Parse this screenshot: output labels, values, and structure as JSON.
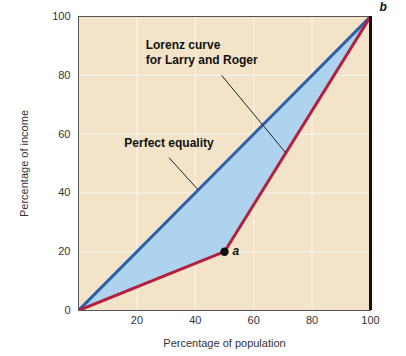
{
  "chart_data": {
    "type": "line",
    "x_label": "Percentage of population",
    "y_label": "Percentage of income",
    "x": [
      0,
      50,
      100
    ],
    "series": [
      {
        "name": "Perfect equality",
        "color": "#2e5fa8",
        "values": [
          0,
          50,
          100
        ]
      },
      {
        "name": "Lorenz curve\nfor Larry and Roger",
        "color": "#b3203f",
        "values": [
          0,
          20,
          100
        ]
      }
    ],
    "annotations": [
      {
        "text": "a",
        "x": 50,
        "y": 20,
        "marker": "dot"
      },
      {
        "text": "b",
        "x": 100,
        "y": 100
      }
    ],
    "xlim": [
      0,
      100
    ],
    "ylim": [
      0,
      100
    ],
    "xticks": [
      20,
      40,
      60,
      80,
      100
    ],
    "yticks": [
      0,
      20,
      40,
      60,
      80,
      100
    ],
    "grid": true
  }
}
